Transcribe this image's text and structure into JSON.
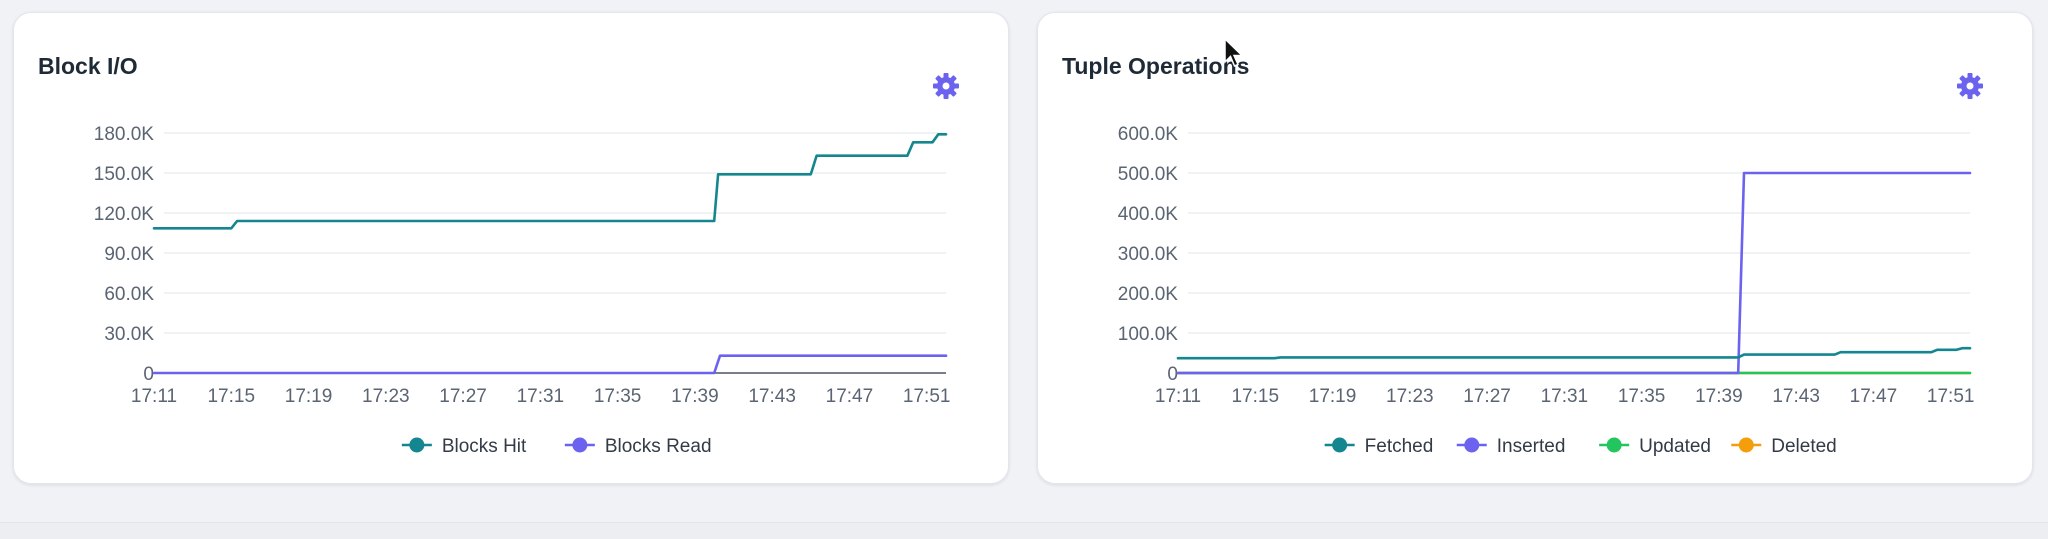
{
  "colors": {
    "teal": "#13868f",
    "purple": "#6b63f0",
    "green": "#22c55e",
    "orange": "#f59e0b",
    "grid": "#e3e5ea",
    "gear": "#6b63f0"
  },
  "chart_data": [
    {
      "type": "line",
      "title": "Block I/O",
      "x_ticks": [
        "17:11",
        "17:15",
        "17:19",
        "17:23",
        "17:27",
        "17:31",
        "17:35",
        "17:39",
        "17:43",
        "17:47",
        "17:51"
      ],
      "y_ticks": [
        "0",
        "30.0K",
        "60.0K",
        "90.0K",
        "120.0K",
        "150.0K",
        "180.0K"
      ],
      "ylim": [
        0,
        180000
      ],
      "xlim": [
        "17:11",
        "17:52"
      ],
      "grid": true,
      "legend": "bottom-center",
      "series": [
        {
          "name": "Blocks Hit",
          "color": "#13868f",
          "points": [
            [
              "17:11",
              108500
            ],
            [
              "17:15",
              108500
            ],
            [
              "17:15.3",
              114000
            ],
            [
              "17:40",
              114000
            ],
            [
              "17:40.2",
              149000
            ],
            [
              "17:45",
              149000
            ],
            [
              "17:45.3",
              163000
            ],
            [
              "17:50",
              163000
            ],
            [
              "17:50.3",
              173000
            ],
            [
              "17:51.3",
              173000
            ],
            [
              "17:51.6",
              179000
            ],
            [
              "17:52",
              179000
            ]
          ]
        },
        {
          "name": "Blocks Read",
          "color": "#6b63f0",
          "points": [
            [
              "17:11",
              0
            ],
            [
              "17:40",
              0
            ],
            [
              "17:40.3",
              13000
            ],
            [
              "17:52",
              13000
            ]
          ]
        }
      ]
    },
    {
      "type": "line",
      "title": "Tuple Operations",
      "x_ticks": [
        "17:11",
        "17:15",
        "17:19",
        "17:23",
        "17:27",
        "17:31",
        "17:35",
        "17:39",
        "17:43",
        "17:47",
        "17:51"
      ],
      "y_ticks": [
        "0",
        "100.0K",
        "200.0K",
        "300.0K",
        "400.0K",
        "500.0K",
        "600.0K"
      ],
      "ylim": [
        0,
        600000
      ],
      "xlim": [
        "17:11",
        "17:52"
      ],
      "grid": true,
      "legend": "bottom-center",
      "series": [
        {
          "name": "Fetched",
          "color": "#13868f",
          "points": [
            [
              "17:11",
              37000
            ],
            [
              "17:16",
              37000
            ],
            [
              "17:16.3",
              39000
            ],
            [
              "17:40",
              39000
            ],
            [
              "17:40.3",
              46000
            ],
            [
              "17:45",
              46000
            ],
            [
              "17:45.3",
              52000
            ],
            [
              "17:50",
              52000
            ],
            [
              "17:50.3",
              58000
            ],
            [
              "17:51.3",
              58000
            ],
            [
              "17:51.6",
              62000
            ],
            [
              "17:52",
              62000
            ]
          ]
        },
        {
          "name": "Inserted",
          "color": "#6b63f0",
          "points": [
            [
              "17:11",
              0
            ],
            [
              "17:40",
              0
            ],
            [
              "17:40.3",
              500000
            ],
            [
              "17:52",
              500000
            ]
          ]
        },
        {
          "name": "Updated",
          "color": "#22c55e",
          "points": [
            [
              "17:11",
              0
            ],
            [
              "17:52",
              0
            ]
          ]
        },
        {
          "name": "Deleted",
          "color": "#f59e0b",
          "points": [
            [
              "17:11",
              0
            ],
            [
              "17:52",
              0
            ]
          ]
        }
      ]
    }
  ]
}
